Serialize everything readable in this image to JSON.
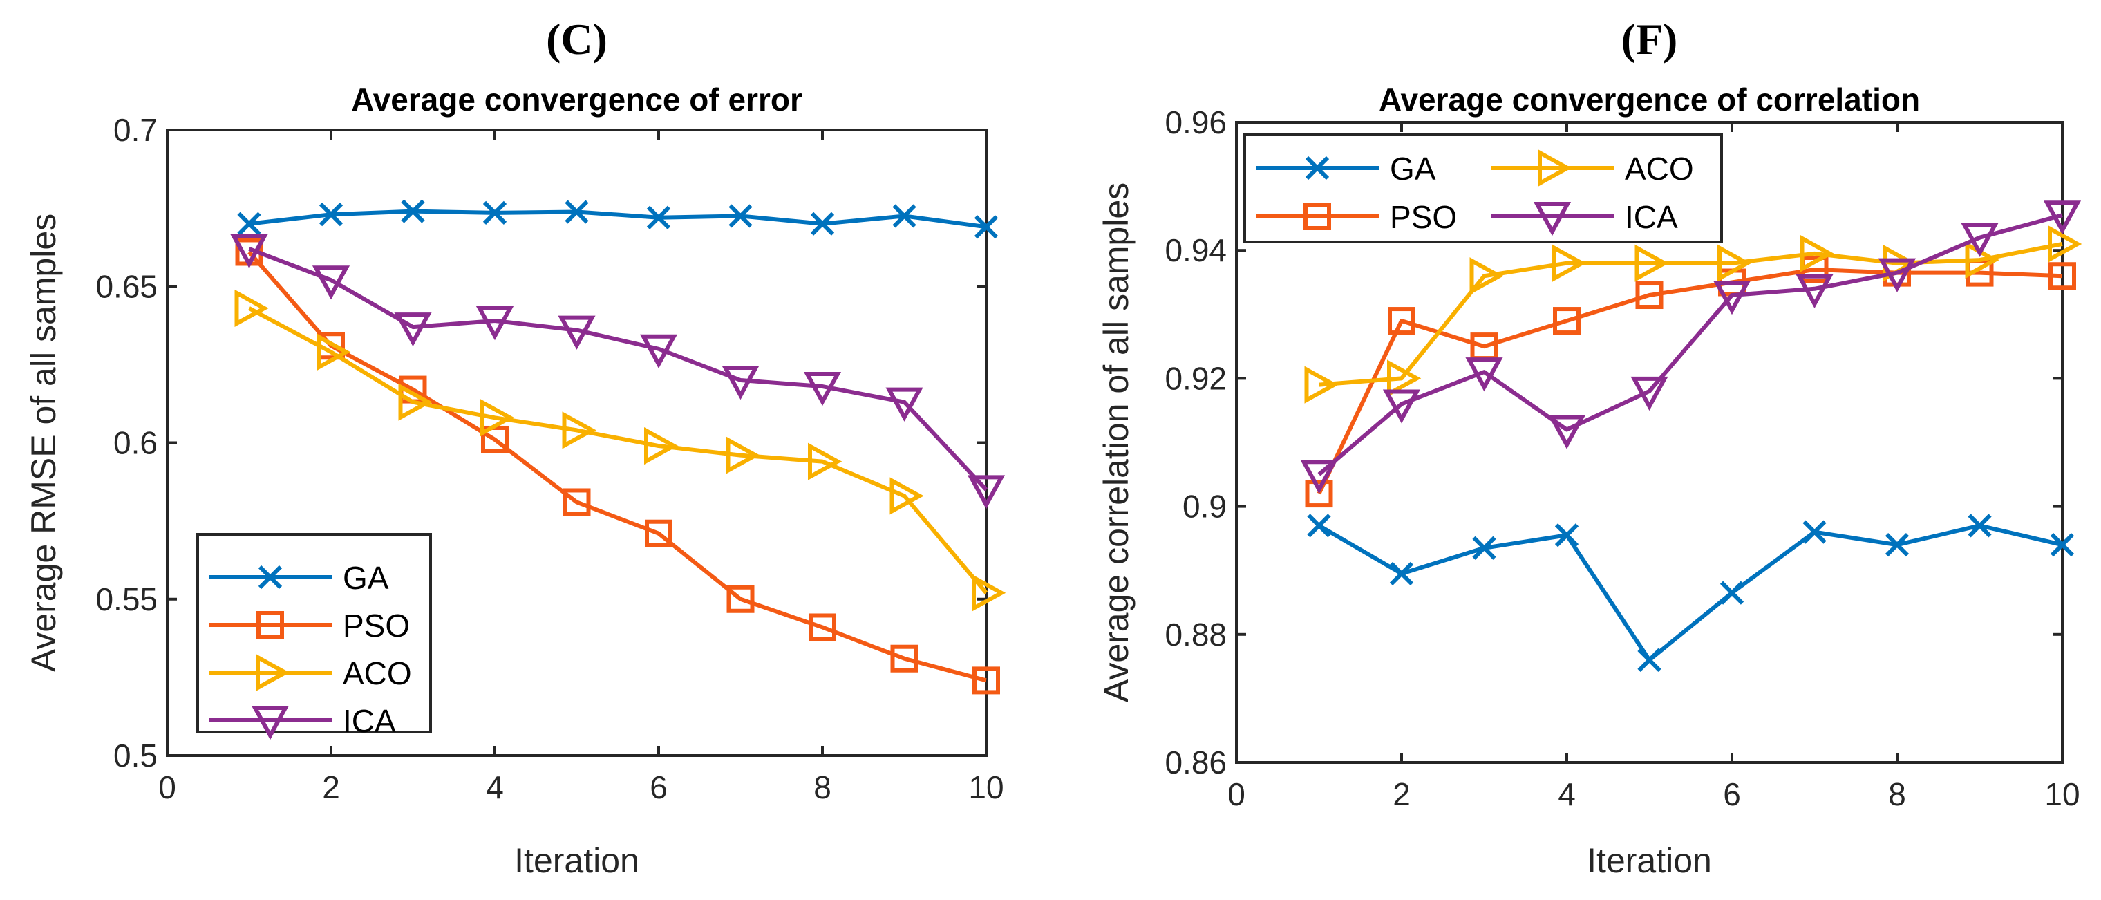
{
  "chart_data": [
    {
      "type": "line",
      "panel_label": "(C)",
      "title": "Average convergence of error",
      "xlabel": "Iteration",
      "ylabel": "Average RMSE of all samples",
      "xlim": [
        0,
        10
      ],
      "ylim": [
        0.5,
        0.7
      ],
      "xticks": [
        "0",
        "2",
        "4",
        "6",
        "8",
        "10"
      ],
      "yticks": [
        "0.5",
        "0.55",
        "0.6",
        "0.65",
        "0.7"
      ],
      "legend_placement": "bottom-left",
      "legend_columns": 1,
      "x": [
        1,
        2,
        3,
        4,
        5,
        6,
        7,
        8,
        9,
        10
      ],
      "series": [
        {
          "name": "GA",
          "color": "#0072BD",
          "marker": "x",
          "values": [
            0.67,
            0.673,
            0.674,
            0.6735,
            0.6738,
            0.672,
            0.6725,
            0.67,
            0.6725,
            0.669
          ]
        },
        {
          "name": "PSO",
          "color": "#F45A14",
          "marker": "square",
          "values": [
            0.661,
            0.631,
            0.617,
            0.601,
            0.581,
            0.571,
            0.55,
            0.541,
            0.531,
            0.524
          ]
        },
        {
          "name": "ACO",
          "color": "#F9B000",
          "marker": "triangle-right",
          "values": [
            0.643,
            0.629,
            0.613,
            0.608,
            0.604,
            0.599,
            0.596,
            0.594,
            0.583,
            0.552
          ]
        },
        {
          "name": "ICA",
          "color": "#8B2C8F",
          "marker": "triangle-down",
          "values": [
            0.662,
            0.652,
            0.637,
            0.639,
            0.636,
            0.63,
            0.62,
            0.618,
            0.613,
            0.585
          ]
        }
      ]
    },
    {
      "type": "line",
      "panel_label": "(F)",
      "title": "Average convergence of correlation",
      "xlabel": "Iteration",
      "ylabel": "Average correlation of all samples",
      "xlim": [
        0,
        10
      ],
      "ylim": [
        0.86,
        0.96
      ],
      "xticks": [
        "0",
        "2",
        "4",
        "6",
        "8",
        "10"
      ],
      "yticks": [
        "0.86",
        "0.88",
        "0.9",
        "0.92",
        "0.94",
        "0.96"
      ],
      "legend_placement": "top-left",
      "legend_columns": 2,
      "x": [
        1,
        2,
        3,
        4,
        5,
        6,
        7,
        8,
        9,
        10
      ],
      "series": [
        {
          "name": "GA",
          "color": "#0072BD",
          "marker": "x",
          "values": [
            0.897,
            0.8895,
            0.8935,
            0.8955,
            0.876,
            0.8865,
            0.896,
            0.894,
            0.897,
            0.894
          ]
        },
        {
          "name": "PSO",
          "color": "#F45A14",
          "marker": "square",
          "values": [
            0.902,
            0.929,
            0.925,
            0.929,
            0.933,
            0.935,
            0.937,
            0.9365,
            0.9365,
            0.936
          ]
        },
        {
          "name": "ACO",
          "color": "#F9B000",
          "marker": "triangle-right",
          "values": [
            0.919,
            0.92,
            0.936,
            0.938,
            0.938,
            0.938,
            0.9395,
            0.938,
            0.9385,
            0.941
          ]
        },
        {
          "name": "ICA",
          "color": "#8B2C8F",
          "marker": "triangle-down",
          "values": [
            0.905,
            0.916,
            0.921,
            0.912,
            0.918,
            0.933,
            0.934,
            0.9365,
            0.942,
            0.9455
          ]
        }
      ]
    }
  ]
}
